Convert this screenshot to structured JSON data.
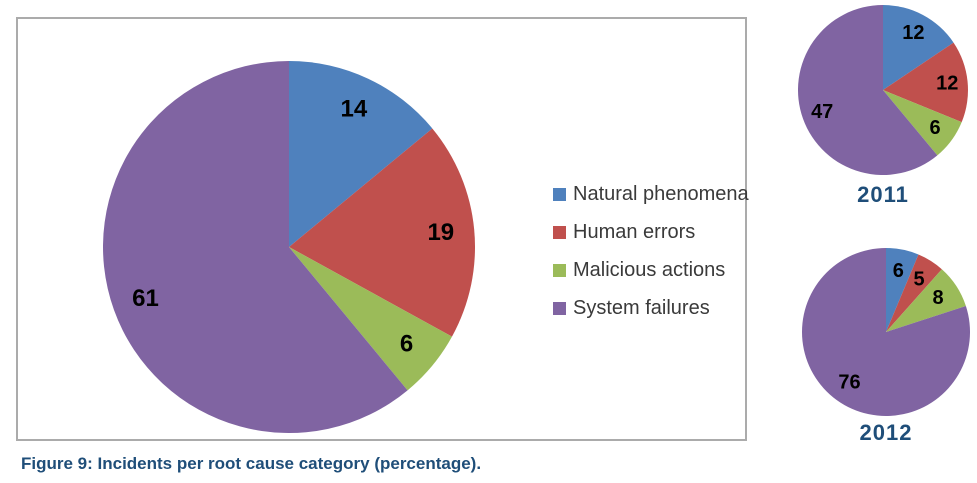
{
  "caption": "Figure 9: Incidents per root cause category (percentage).",
  "colors": {
    "natural_phenomena": "#4F81BD",
    "human_errors": "#C0504D",
    "malicious_actions": "#9BBB59",
    "system_failures": "#8064A2",
    "title_blue": "#1F4E79",
    "legend_text": "#3A3A3A",
    "panel_border": "#ABABAB"
  },
  "legend": {
    "items": [
      {
        "label": "Natural phenomena",
        "color": "#4F81BD"
      },
      {
        "label": "Human errors",
        "color": "#C0504D"
      },
      {
        "label": "Malicious actions",
        "color": "#9BBB59"
      },
      {
        "label": "System failures",
        "color": "#8064A2"
      }
    ]
  },
  "chart_data": [
    {
      "id": "overall",
      "type": "pie",
      "title": "",
      "categories": [
        "Natural phenomena",
        "Human errors",
        "Malicious actions",
        "System failures"
      ],
      "values": [
        14,
        19,
        6,
        61
      ],
      "colors": [
        "#4F81BD",
        "#C0504D",
        "#9BBB59",
        "#8064A2"
      ],
      "start_angle_deg": 0,
      "direction": "clockwise",
      "label_radius_frac": 0.82,
      "legend_position": "right",
      "data_labels": "values-inside"
    },
    {
      "id": "2011",
      "type": "pie",
      "title": "2011",
      "categories": [
        "Natural phenomena",
        "Human errors",
        "Malicious actions",
        "System failures"
      ],
      "values": [
        12,
        12,
        6,
        47
      ],
      "colors": [
        "#4F81BD",
        "#C0504D",
        "#9BBB59",
        "#8064A2"
      ],
      "start_angle_deg": 0,
      "direction": "clockwise",
      "label_radius_frac": 0.76,
      "legend_position": "none",
      "data_labels": "values-inside"
    },
    {
      "id": "2012",
      "type": "pie",
      "title": "2012",
      "categories": [
        "Natural phenomena",
        "Human errors",
        "Malicious actions",
        "System failures"
      ],
      "values": [
        6,
        5,
        8,
        76
      ],
      "colors": [
        "#4F81BD",
        "#C0504D",
        "#9BBB59",
        "#8064A2"
      ],
      "start_angle_deg": 0,
      "direction": "clockwise",
      "label_radius_frac": 0.74,
      "legend_position": "none",
      "data_labels": "values-inside"
    }
  ]
}
